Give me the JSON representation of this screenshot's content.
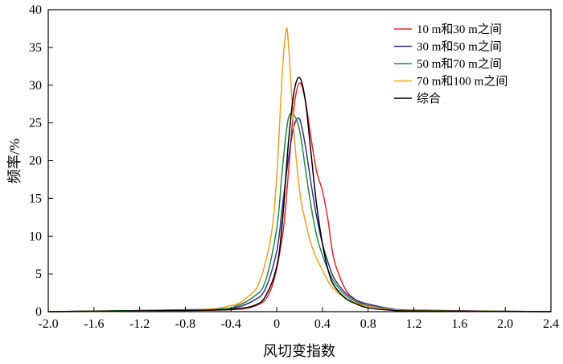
{
  "chart_data": {
    "type": "line",
    "xlabel": "风切变指数",
    "ylabel": "频率/%",
    "xlim": [
      -2.0,
      2.4
    ],
    "ylim": [
      0,
      40
    ],
    "xticks": [
      "-2.0",
      "-1.6",
      "-1.2",
      "-0.8",
      "-0.4",
      "0",
      "0.4",
      "0.8",
      "1.2",
      "1.6",
      "2.0",
      "2.4"
    ],
    "yticks": [
      "0",
      "5",
      "10",
      "15",
      "20",
      "25",
      "30",
      "35",
      "40"
    ],
    "legend_position": "top-right",
    "grid": false,
    "series": [
      {
        "name": "10 m和30 m之间",
        "color": "#e8262a",
        "points": [
          [
            -2.0,
            0
          ],
          [
            -0.6,
            0.2
          ],
          [
            -0.2,
            0.7
          ],
          [
            -0.05,
            3
          ],
          [
            0.05,
            10
          ],
          [
            0.1,
            18
          ],
          [
            0.15,
            27
          ],
          [
            0.2,
            30.3
          ],
          [
            0.25,
            28
          ],
          [
            0.3,
            23
          ],
          [
            0.35,
            18.5
          ],
          [
            0.4,
            16
          ],
          [
            0.45,
            12
          ],
          [
            0.5,
            7
          ],
          [
            0.6,
            3
          ],
          [
            0.7,
            1.5
          ],
          [
            0.8,
            0.8
          ],
          [
            1.0,
            0.3
          ],
          [
            1.2,
            0.1
          ],
          [
            2.4,
            0
          ]
        ]
      },
      {
        "name": "30 m和50 m之间",
        "color": "#3a2d8f",
        "points": [
          [
            -2.0,
            0
          ],
          [
            -0.6,
            0.3
          ],
          [
            -0.35,
            0.6
          ],
          [
            -0.2,
            1.5
          ],
          [
            -0.1,
            3
          ],
          [
            0,
            8
          ],
          [
            0.05,
            14
          ],
          [
            0.1,
            20
          ],
          [
            0.15,
            24.5
          ],
          [
            0.2,
            25.5
          ],
          [
            0.25,
            22
          ],
          [
            0.3,
            17
          ],
          [
            0.35,
            12.5
          ],
          [
            0.4,
            9
          ],
          [
            0.45,
            6.5
          ],
          [
            0.5,
            4.5
          ],
          [
            0.6,
            2.5
          ],
          [
            0.7,
            1.5
          ],
          [
            0.8,
            1
          ],
          [
            1.0,
            0.4
          ],
          [
            1.2,
            0.2
          ],
          [
            2.4,
            0
          ]
        ]
      },
      {
        "name": "50 m和70 m之间",
        "color": "#1f8b3a",
        "points": [
          [
            -2.0,
            0
          ],
          [
            -0.6,
            0.3
          ],
          [
            -0.35,
            0.8
          ],
          [
            -0.2,
            2
          ],
          [
            -0.1,
            4
          ],
          [
            0,
            11
          ],
          [
            0.05,
            19
          ],
          [
            0.1,
            25.5
          ],
          [
            0.15,
            26
          ],
          [
            0.2,
            24
          ],
          [
            0.25,
            19
          ],
          [
            0.3,
            14
          ],
          [
            0.35,
            10
          ],
          [
            0.4,
            7.5
          ],
          [
            0.45,
            5.5
          ],
          [
            0.5,
            4
          ],
          [
            0.6,
            2.2
          ],
          [
            0.7,
            1.3
          ],
          [
            0.8,
            0.8
          ],
          [
            1.0,
            0.3
          ],
          [
            1.2,
            0.15
          ],
          [
            2.4,
            0
          ]
        ]
      },
      {
        "name": "70 m和100 m之间",
        "color": "#f2a020",
        "points": [
          [
            -2.0,
            0
          ],
          [
            -0.8,
            0.2
          ],
          [
            -0.4,
            0.8
          ],
          [
            -0.25,
            2
          ],
          [
            -0.15,
            4
          ],
          [
            -0.05,
            10
          ],
          [
            0,
            18
          ],
          [
            0.05,
            32
          ],
          [
            0.08,
            37
          ],
          [
            0.1,
            36
          ],
          [
            0.15,
            24
          ],
          [
            0.2,
            16
          ],
          [
            0.25,
            12
          ],
          [
            0.3,
            9
          ],
          [
            0.35,
            7
          ],
          [
            0.4,
            5.5
          ],
          [
            0.45,
            4
          ],
          [
            0.5,
            3
          ],
          [
            0.6,
            1.8
          ],
          [
            0.7,
            1.1
          ],
          [
            0.8,
            0.7
          ],
          [
            1.0,
            0.3
          ],
          [
            1.2,
            0.15
          ],
          [
            2.4,
            0
          ]
        ]
      },
      {
        "name": "综合",
        "color": "#000000",
        "points": [
          [
            -2.0,
            0
          ],
          [
            -0.6,
            0.2
          ],
          [
            -0.35,
            0.4
          ],
          [
            -0.2,
            0.8
          ],
          [
            -0.1,
            2
          ],
          [
            0,
            6
          ],
          [
            0.05,
            12
          ],
          [
            0.1,
            22
          ],
          [
            0.15,
            29
          ],
          [
            0.2,
            31
          ],
          [
            0.25,
            28
          ],
          [
            0.3,
            21
          ],
          [
            0.35,
            14
          ],
          [
            0.4,
            9
          ],
          [
            0.45,
            5.5
          ],
          [
            0.5,
            3.5
          ],
          [
            0.6,
            1.8
          ],
          [
            0.7,
            1
          ],
          [
            0.8,
            0.5
          ],
          [
            1.0,
            0.2
          ],
          [
            1.2,
            0.1
          ],
          [
            2.4,
            0
          ]
        ]
      }
    ]
  }
}
